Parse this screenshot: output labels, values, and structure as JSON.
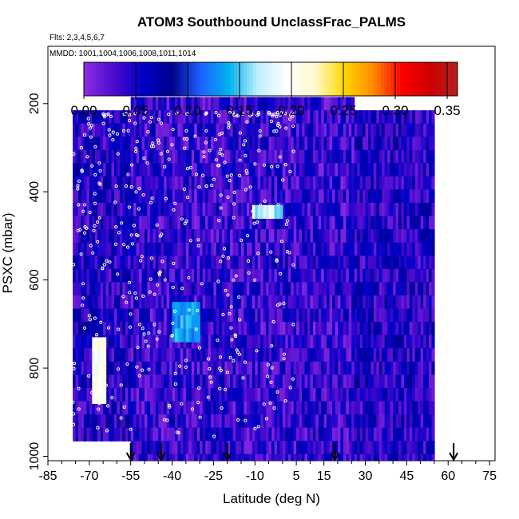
{
  "title": "ATOM3 Southbound UnclassFrac_PALMS",
  "flights_label": "Flts: 2,3,4,5,6,7",
  "mmdd_label": "MMDD: 1001,1004,1006,1008,1011,1014",
  "colors": {
    "marker": "#ffffff",
    "arrow": "#000000",
    "colorbar_stops": [
      "#8a2be2",
      "#4b0acd",
      "#0000c8",
      "#00008b",
      "#1e60ff",
      "#00b2ee",
      "#bfefff",
      "#ffffff",
      "#fffacd",
      "#ffd700",
      "#ff8c00",
      "#ff0000",
      "#cd0000",
      "#b22222"
    ]
  },
  "chart_data": {
    "type": "heatmap",
    "title": "ATOM3 Southbound UnclassFrac_PALMS",
    "xlabel": "Latitude (deg N)",
    "ylabel": "PSXC (mbar)",
    "x_ticks": [
      -85,
      -70,
      -55,
      -40,
      -25,
      -10,
      5,
      15,
      30,
      45,
      60,
      75
    ],
    "x_tick_labels": [
      "-85",
      "-70",
      "-55",
      "-40",
      "-25",
      "-10",
      "5",
      "15",
      "30",
      "45",
      "60",
      "75"
    ],
    "y_ticks": [
      200,
      400,
      600,
      800,
      1000
    ],
    "y_tick_labels": [
      "200",
      "400",
      "600",
      "800",
      "1000"
    ],
    "xlim": [
      -85,
      77
    ],
    "ylim": [
      1010,
      70
    ],
    "y_reversed": true,
    "colorbar": {
      "min": 0,
      "max": 0.36,
      "ticks": [
        0.0,
        0.05,
        0.1,
        0.15,
        0.2,
        0.25,
        0.3,
        0.35
      ],
      "tick_labels": [
        "0.00",
        "0.05",
        "0.10",
        "0.15",
        "0.20",
        "0.25",
        "0.30",
        "0.35"
      ]
    },
    "legend_position": "top",
    "arrows_latitude": [
      -55,
      -44,
      -20,
      19,
      62
    ],
    "series": [
      {
        "lat_start": -76,
        "lat_end": -20,
        "p_top": 215,
        "p_bottom": 960,
        "level": 0.05
      },
      {
        "lat_start": -55,
        "lat_end": 26,
        "p_top": 185,
        "p_bottom": 1000,
        "level": 0.04
      },
      {
        "lat_start": 26,
        "lat_end": 55,
        "p_top": 215,
        "p_bottom": 1000,
        "level": 0.05
      },
      {
        "lat_start": -69,
        "lat_end": -64,
        "p_top": 730,
        "p_bottom": 860,
        "level": 0.2
      },
      {
        "lat_start": -11,
        "lat_end": 0,
        "p_top": 430,
        "p_bottom": 460,
        "level": 0.17
      },
      {
        "lat_start": -40,
        "lat_end": -30,
        "p_top": 650,
        "p_bottom": 720,
        "level": 0.13
      }
    ]
  }
}
